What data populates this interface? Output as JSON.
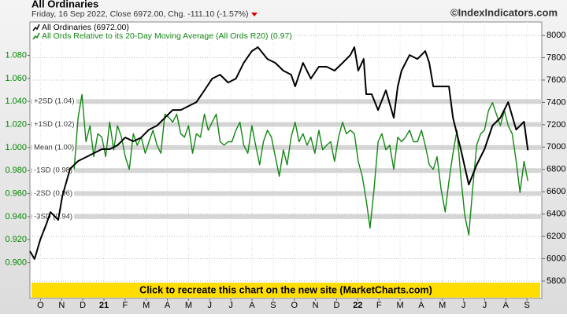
{
  "chart_data": {
    "type": "line",
    "title": "All Ordinaries",
    "subtitle": "Friday, 16 Sep 2022, Close 6972.00, Chg. -111.10 (-1.57%)",
    "watermark": "©IndexIndicators.com",
    "banner": "Click to recreate this chart on the new site (MarketCharts.com)",
    "xlim": [
      0,
      24.2
    ],
    "xticks": [
      {
        "value": 0.5,
        "label": "O"
      },
      {
        "value": 1.5,
        "label": "N"
      },
      {
        "value": 2.5,
        "label": "D"
      },
      {
        "value": 3.5,
        "label": "21"
      },
      {
        "value": 4.5,
        "label": "F"
      },
      {
        "value": 5.5,
        "label": "M"
      },
      {
        "value": 6.5,
        "label": "A"
      },
      {
        "value": 7.5,
        "label": "M"
      },
      {
        "value": 8.5,
        "label": "J"
      },
      {
        "value": 9.5,
        "label": "J"
      },
      {
        "value": 10.5,
        "label": "A"
      },
      {
        "value": 11.5,
        "label": "S"
      },
      {
        "value": 12.5,
        "label": "O"
      },
      {
        "value": 13.5,
        "label": "N"
      },
      {
        "value": 14.5,
        "label": "D"
      },
      {
        "value": 15.5,
        "label": "22"
      },
      {
        "value": 16.5,
        "label": "F"
      },
      {
        "value": 17.5,
        "label": "M"
      },
      {
        "value": 18.5,
        "label": "A"
      },
      {
        "value": 19.5,
        "label": "M"
      },
      {
        "value": 20.5,
        "label": "J"
      },
      {
        "value": 21.5,
        "label": "J"
      },
      {
        "value": 22.5,
        "label": "A"
      },
      {
        "value": 23.5,
        "label": "S"
      }
    ],
    "ylim": [
      0.869,
      1.109
    ],
    "yticks": [
      {
        "value": 0.9,
        "label": "0.900"
      },
      {
        "value": 0.92,
        "label": "0.920"
      },
      {
        "value": 0.94,
        "label": "0.940"
      },
      {
        "value": 0.96,
        "label": "0.960"
      },
      {
        "value": 0.98,
        "label": "0.980"
      },
      {
        "value": 1.0,
        "label": "1.000"
      },
      {
        "value": 1.02,
        "label": "1.020"
      },
      {
        "value": 1.04,
        "label": "1.040"
      },
      {
        "value": 1.06,
        "label": "1.060"
      },
      {
        "value": 1.08,
        "label": "1.080"
      }
    ],
    "y2lim": [
      5645,
      8120
    ],
    "y2ticks": [
      5800,
      6000,
      6200,
      6400,
      6600,
      6800,
      7000,
      7200,
      7400,
      7600,
      7800,
      8000
    ],
    "grid": true,
    "bands": [
      {
        "value": 1.04,
        "label": "+2SD (1.04)"
      },
      {
        "value": 1.02,
        "label": "+1SD (1.02)"
      },
      {
        "value": 1.0,
        "label": "Mean (1.00)"
      },
      {
        "value": 0.98,
        "label": "-1SD (0.98)"
      },
      {
        "value": 0.96,
        "label": "-2SD (0.96)"
      },
      {
        "value": 0.94,
        "label": "-3SD (0.94)"
      }
    ],
    "series": [
      {
        "name": "All Ordinaries (6972.00)",
        "color": "#000000",
        "axis": "y2",
        "x": [
          0,
          0.22,
          0.49,
          0.78,
          0.97,
          1.34,
          1.53,
          1.9,
          2.28,
          2.65,
          3.02,
          3.4,
          3.77,
          4.14,
          4.51,
          4.89,
          5.26,
          5.63,
          6.01,
          6.38,
          6.75,
          7.13,
          7.5,
          7.87,
          8.25,
          8.62,
          8.99,
          9.37,
          9.74,
          10.11,
          10.49,
          10.78,
          11.23,
          11.6,
          11.98,
          12.35,
          12.54,
          12.91,
          13.28,
          13.66,
          14.03,
          14.4,
          14.78,
          15.15,
          15.34,
          15.52,
          15.78,
          15.9,
          16.16,
          16.46,
          16.83,
          17.2,
          17.39,
          17.57,
          17.95,
          18.32,
          18.69,
          18.88,
          19.07,
          19.44,
          19.81,
          20.0,
          20.37,
          20.75,
          21.12,
          21.49,
          21.87,
          22.24,
          22.61,
          22.99,
          23.36,
          23.54
        ],
        "values": [
          6067,
          5997,
          6172,
          6313,
          6418,
          6348,
          6559,
          6805,
          6875,
          6910,
          6945,
          6981,
          6981,
          7016,
          7086,
          7051,
          7086,
          7156,
          7192,
          7262,
          7332,
          7332,
          7367,
          7402,
          7508,
          7613,
          7648,
          7578,
          7613,
          7754,
          7859,
          7894,
          7789,
          7754,
          7684,
          7648,
          7543,
          7754,
          7613,
          7719,
          7719,
          7684,
          7754,
          7824,
          7894,
          7684,
          7789,
          7473,
          7473,
          7332,
          7508,
          7262,
          7543,
          7684,
          7824,
          7789,
          7859,
          7754,
          7543,
          7543,
          7543,
          7262,
          6981,
          6664,
          6840,
          6981,
          7192,
          7262,
          7402,
          7156,
          7227,
          6972
        ]
      },
      {
        "name": "All Ords Relative to its 20-Day Moving Average (All Ords R20) (0.97)",
        "color": "#128712",
        "x": [
          2.09,
          2.28,
          2.46,
          2.65,
          2.84,
          3.02,
          3.21,
          3.4,
          3.58,
          3.77,
          3.96,
          4.14,
          4.33,
          4.51,
          4.7,
          4.89,
          5.07,
          5.26,
          5.45,
          5.63,
          5.82,
          6.01,
          6.19,
          6.38,
          6.57,
          6.75,
          6.94,
          7.13,
          7.31,
          7.5,
          7.69,
          7.87,
          8.06,
          8.25,
          8.43,
          8.62,
          8.81,
          8.99,
          9.18,
          9.37,
          9.55,
          9.74,
          9.93,
          10.11,
          10.3,
          10.49,
          10.67,
          10.86,
          11.04,
          11.23,
          11.42,
          11.6,
          11.79,
          11.98,
          12.16,
          12.35,
          12.54,
          12.72,
          12.91,
          13.1,
          13.28,
          13.47,
          13.66,
          13.84,
          14.03,
          14.22,
          14.4,
          14.59,
          14.78,
          14.96,
          15.15,
          15.34,
          15.52,
          15.71,
          15.9,
          16.08,
          16.27,
          16.46,
          16.64,
          16.83,
          17.01,
          17.2,
          17.39,
          17.57,
          17.76,
          17.95,
          18.13,
          18.32,
          18.51,
          18.69,
          18.88,
          19.07,
          19.25,
          19.44,
          19.63,
          19.81,
          20.0,
          20.19,
          20.37,
          20.56,
          20.75,
          20.93,
          21.12,
          21.31,
          21.49,
          21.68,
          21.87,
          22.05,
          22.24,
          22.43,
          22.61,
          22.8,
          22.99,
          23.17,
          23.36,
          23.54
        ],
        "values": [
          0.981,
          1.026,
          1.046,
          1.005,
          1.019,
          0.992,
          1.012,
          1.009,
          0.992,
          1.022,
          0.998,
          1.019,
          1.009,
          0.992,
          0.981,
          1.012,
          1.002,
          1.009,
          0.995,
          1.005,
          1.015,
          1.002,
          0.995,
          1.029,
          1.026,
          1.022,
          1.029,
          1.012,
          1.009,
          1.019,
          0.995,
          1.012,
          1.009,
          1.029,
          1.015,
          1.022,
          1.029,
          1.005,
          1.002,
          1.005,
          1.005,
          1.015,
          1.022,
          1.002,
          0.995,
          1.019,
          1.002,
          0.985,
          1.005,
          1.015,
          1.009,
          0.992,
          0.975,
          0.998,
          0.985,
          1.009,
          1.022,
          1.005,
          1.012,
          1.002,
          1.009,
          0.995,
          1.015,
          0.998,
          1.002,
          1.005,
          0.988,
          1.009,
          1.022,
          1.012,
          1.015,
          1.012,
          0.988,
          0.975,
          0.954,
          0.93,
          0.964,
          1.005,
          1.012,
          0.998,
          1.002,
          0.981,
          1.009,
          1.005,
          1.009,
          1.015,
          1.005,
          1.005,
          1.015,
          1.002,
          0.985,
          0.981,
          0.992,
          0.964,
          0.944,
          0.971,
          0.995,
          1.015,
          0.975,
          0.941,
          0.924,
          0.964,
          1.002,
          1.012,
          1.015,
          1.032,
          1.039,
          1.029,
          1.019,
          1.032,
          1.019,
          1.012,
          0.988,
          0.961,
          0.988,
          0.971
        ]
      }
    ]
  }
}
